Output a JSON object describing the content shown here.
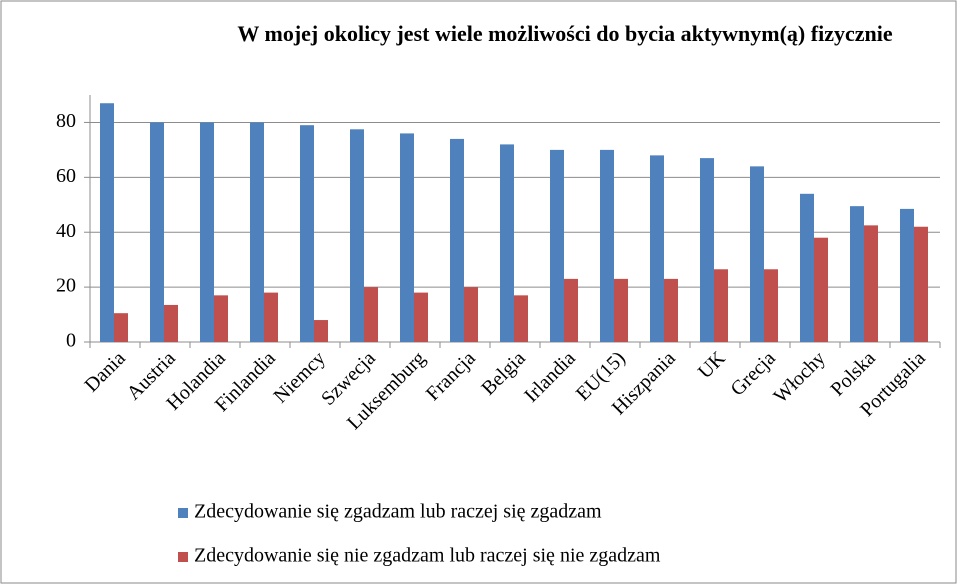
{
  "chart_data": {
    "type": "bar",
    "title": "W mojej okolicy jest wiele możliwości do bycia aktywnym(ą) fizycznie",
    "categories": [
      "Dania",
      "Austria",
      "Holandia",
      "Finlandia",
      "Niemcy",
      "Szwecja",
      "Luksemburg",
      "Francja",
      "Belgia",
      "Irlandia",
      "EU(15)",
      "Hiszpania",
      "UK",
      "Grecja",
      "Włochy",
      "Polska",
      "Portugalia"
    ],
    "series": [
      {
        "name": "Zdecydowanie się zgadzam lub raczej się zgadzam",
        "color": "#4f81bd",
        "values": [
          87,
          80,
          80,
          80,
          79,
          77.5,
          76,
          74,
          72,
          70,
          70,
          68,
          67,
          64,
          54,
          49.5,
          48.5
        ]
      },
      {
        "name": "Zdecydowanie się nie zgadzam lub raczej się nie zgadzam",
        "color": "#c0504d",
        "values": [
          10.5,
          13.5,
          17,
          18,
          8,
          20,
          18,
          20,
          17,
          23,
          23,
          23,
          26.5,
          26.5,
          38,
          42.5,
          42
        ]
      }
    ],
    "ylim": [
      0,
      90
    ],
    "yticks": [
      0,
      20,
      40,
      60,
      80
    ],
    "grid": true,
    "legend": "bottom"
  }
}
